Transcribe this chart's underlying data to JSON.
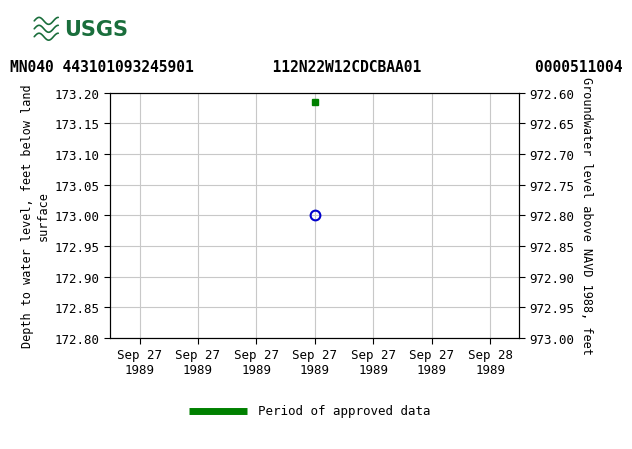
{
  "title_line": "MN040 443101093245901         112N22W12CDCBAA01             0000511004",
  "usgs_header_color": "#1a6e3c",
  "left_ylabel_lines": [
    "Depth to water level, feet below land",
    "surface"
  ],
  "right_ylabel": "Groundwater level above NAVD 1988, feet",
  "ylim_left_top": 172.8,
  "ylim_left_bottom": 173.2,
  "ylim_right_top": 973.0,
  "ylim_right_bottom": 972.6,
  "left_yticks": [
    172.8,
    172.85,
    172.9,
    172.95,
    173.0,
    173.05,
    173.1,
    173.15,
    173.2
  ],
  "right_ytick_vals": [
    973.0,
    972.95,
    972.9,
    972.85,
    972.8,
    972.75,
    972.7,
    972.65,
    972.6
  ],
  "right_ytick_labels": [
    "973.00",
    "972.95",
    "972.90",
    "972.85",
    "972.80",
    "972.75",
    "972.70",
    "972.65",
    "972.60"
  ],
  "x_ticks_pos": [
    -3.0,
    -2.0,
    -1.0,
    0.0,
    1.0,
    2.0,
    3.0
  ],
  "x_tick_labels": [
    "Sep 27\n1989",
    "Sep 27\n1989",
    "Sep 27\n1989",
    "Sep 27\n1989",
    "Sep 27\n1989",
    "Sep 27\n1989",
    "Sep 28\n1989"
  ],
  "data_point_x_blue": 0.0,
  "data_point_y_blue": 173.0,
  "data_point_x_green": 0.0,
  "data_point_y_green": 173.185,
  "blue_marker_color": "#0000cc",
  "green_marker_color": "#008000",
  "grid_color": "#c8c8c8",
  "background_color": "#ffffff",
  "tick_fontsize": 9,
  "axis_label_fontsize": 8.5,
  "title_fontsize": 10.5,
  "legend_label": "Period of approved data",
  "legend_fontsize": 9
}
